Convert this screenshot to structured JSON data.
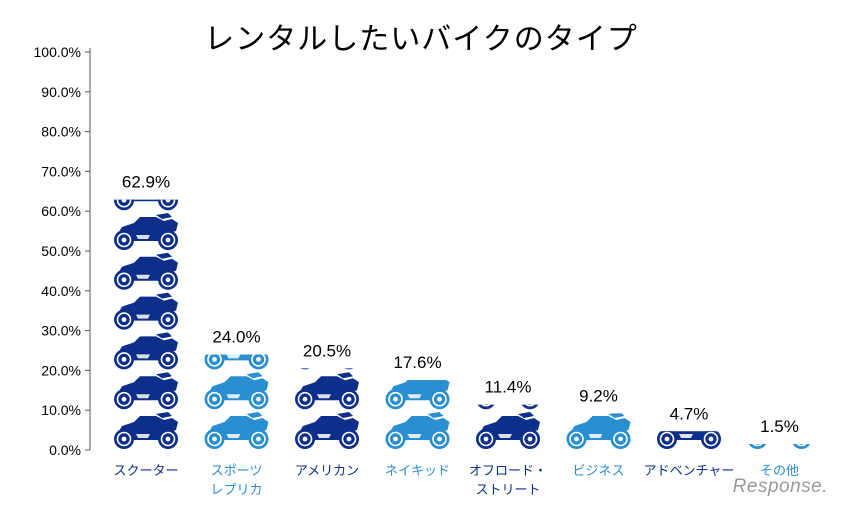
{
  "chart_data": {
    "type": "bar",
    "title": "レンタルしたいバイクのタイプ",
    "categories": [
      [
        "スクーター"
      ],
      [
        "スポーツ",
        "レプリカ"
      ],
      [
        "アメリカン"
      ],
      [
        "ネイキッド"
      ],
      [
        "オフロード・",
        "ストリート"
      ],
      [
        "ビジネス"
      ],
      [
        "アドベンチャー"
      ],
      [
        "その他"
      ]
    ],
    "values": [
      62.9,
      24.0,
      20.5,
      17.6,
      11.4,
      9.2,
      4.7,
      1.5
    ],
    "value_labels": [
      "62.9%",
      "24.0%",
      "20.5%",
      "17.6%",
      "11.4%",
      "9.2%",
      "4.7%",
      "1.5%"
    ],
    "bar_colors": [
      "#0d2f8a",
      "#2a8fd1",
      "#0d2f8a",
      "#2a8fd1",
      "#0d2f8a",
      "#2a8fd1",
      "#0d2f8a",
      "#2a8fd1"
    ],
    "label_colors": [
      "#0d2f8a",
      "#2a8fd1",
      "#0d2f8a",
      "#2a8fd1",
      "#0d2f8a",
      "#2a8fd1",
      "#0d2f8a",
      "#2a8fd1"
    ],
    "ylim": [
      0,
      100
    ],
    "ytick_values": [
      0,
      10,
      20,
      30,
      40,
      50,
      60,
      70,
      80,
      90,
      100
    ],
    "ytick_labels": [
      "0.0%",
      "10.0%",
      "20.0%",
      "30.0%",
      "40.0%",
      "50.0%",
      "60.0%",
      "70.0%",
      "80.0%",
      "90.0%",
      "100.0%"
    ],
    "grid": false,
    "legend": "none",
    "mark_style": "stacked motorcycle pictograms",
    "xlabel": "",
    "ylabel": ""
  },
  "watermark": "Response."
}
